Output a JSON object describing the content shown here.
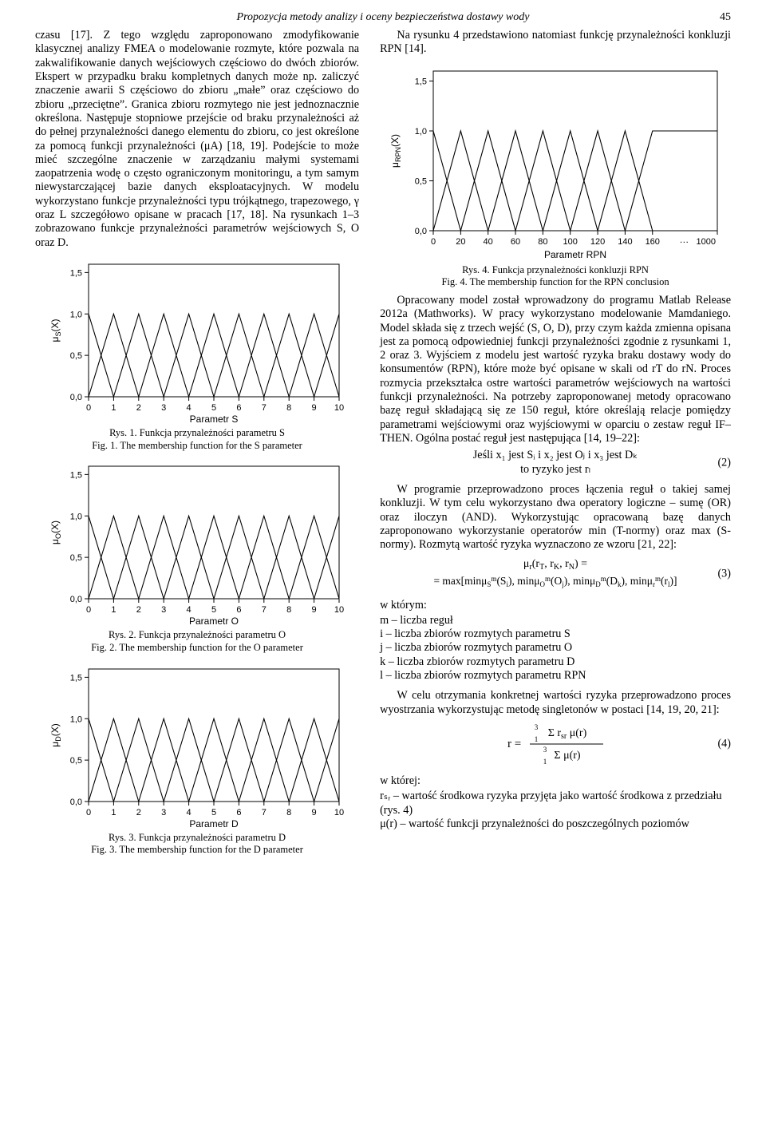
{
  "page": {
    "running_head": "Propozycja metody analizy i oceny bezpieczeństwa dostawy wody",
    "number": "45"
  },
  "left_text": {
    "p1": "czasu [17]. Z tego względu zaproponowano zmodyfikowanie klasycznej analizy FMEA o modelowanie rozmyte, które pozwala na zakwalifikowanie danych wejściowych częściowo do dwóch zbiorów. Ekspert w przypadku braku kompletnych danych może np. zaliczyć znaczenie awarii S częściowo do zbioru „małe” oraz częściowo do zbioru „przeciętne”. Granica zbioru rozmytego nie jest jednoznacznie określona. Następuje stopniowe przejście od braku przynależności aż do pełnej przynależności danego elementu do zbioru, co jest określone za pomocą funkcji przynależności (μA) [18, 19]. Podejście to może mieć szczególne znaczenie w zarządzaniu małymi systemami zaopatrzenia wodę o często ograniczonym monitoringu, a tym samym niewystarczającej bazie danych eksploatacyjnych. W modelu wykorzystano funkcje przynależności typu trójkątnego, trapezowego, γ oraz L szczegółowo opisane w pracach [17, 18]. Na rysunkach 1–3 zobrazowano funkcje przynależności parametrów wejściowych S, O oraz D."
  },
  "right_text": {
    "p1": "Na rysunku 4 przedstawiono natomiast funkcję przynależności konkluzji RPN [14].",
    "p2": "Opracowany model został wprowadzony do programu Matlab Release 2012a (Mathworks). W pracy wykorzystano modelowanie Mamdaniego. Model składa się z trzech wejść (S, O, D), przy czym każda zmienna opisana jest za pomocą odpowiedniej funkcji przynależności zgodnie z rysunkami 1, 2 oraz 3. Wyjściem z modelu jest wartość ryzyka braku dostawy wody do konsumentów (RPN), które może być opisane w skali od rT do rN. Proces rozmycia przekształca ostre wartości parametrów wejściowych na wartości funkcji przynależności. Na potrzeby zaproponowanej metody opracowano bazę reguł składającą się ze 150 reguł, które określają relacje pomiędzy parametrami wejściowymi oraz wyjściowymi w oparciu o zestaw reguł IF–THEN. Ogólna postać reguł jest następująca [14, 19–22]:",
    "eq2_line1": "Jeśli x₁ jest Sᵢ i x₂ jest Oⱼ i x₃ jest Dₖ",
    "eq2_line2": "to ryzyko jest rₗ",
    "eq2_num": "(2)",
    "p3": "W programie przeprowadzono proces łączenia reguł o takiej samej konkluzji. W tym celu wykorzystano dwa operatory logiczne – sumę (OR) oraz iloczyn (AND). Wykorzystując opracowaną bazę danych zaproponowano wykorzystanie operatorów min (T-normy) oraz max (S-normy). Rozmytą wartość ryzyka wyznaczono ze wzoru [21, 22]:",
    "eq3_num": "(3)",
    "where_label": "w którym:",
    "where_items": [
      "m – liczba reguł",
      "i – liczba zbiorów rozmytych parametru S",
      "j – liczba zbiorów rozmytych parametru O",
      "k – liczba zbiorów rozmytych parametru D",
      "l – liczba zbiorów rozmytych parametru RPN"
    ],
    "p4": "W celu otrzymania konkretnej wartości ryzyka przeprowadzono proces wyostrzania wykorzystując metodę singletonów w postaci [14, 19, 20, 21]:",
    "eq4_num": "(4)",
    "where2_label": "w której:",
    "where2_items": [
      "rₛᵣ – wartość środkowa ryzyka przyjęta jako wartość środkowa z przedziału (rys. 4)",
      "μ(r) – wartość funkcji przynależności do poszczególnych poziomów"
    ]
  },
  "figs": {
    "fig1": {
      "cap_pl": "Rys. 1. Funkcja przynależności parametru S",
      "cap_en": "Fig. 1. The membership function for the S parameter",
      "xlabel": "Parametr S",
      "ylabel": "μS(X)",
      "params": {
        "type": "membership-triangles",
        "xlim": [
          0,
          10
        ],
        "ylim": [
          0.0,
          1.6
        ],
        "xticks": [
          0,
          1,
          2,
          3,
          4,
          5,
          6,
          7,
          8,
          9,
          10
        ],
        "yticks": [
          0.0,
          0.5,
          1.0,
          1.5
        ],
        "yticklabels": [
          "0,0",
          "0,5",
          "1,0",
          "1,5"
        ],
        "firstHalfWidth": 0.5,
        "lastHalfWidth": 0.5,
        "axis_stroke": "#000000",
        "line_stroke": "#000000",
        "grid_color": "#000000",
        "line_width": 1.1,
        "label_font_size": 12,
        "tick_font_size": 11,
        "background": "#ffffff"
      }
    },
    "fig2": {
      "cap_pl": "Rys. 2. Funkcja przynależności parametru O",
      "cap_en": "Fig. 2. The membership function for the O parameter",
      "xlabel": "Parametr O",
      "ylabel": "μO(X)",
      "params": {
        "copyOf": "fig1"
      }
    },
    "fig3": {
      "cap_pl": "Rys. 3. Funkcja przynależności parametru D",
      "cap_en": "Fig. 3. The membership function for the D parameter",
      "xlabel": "Parametr D",
      "ylabel": "μD(X)",
      "params": {
        "copyOf": "fig1"
      }
    },
    "fig4": {
      "cap_pl": "Rys. 4. Funkcja przynależności konkluzji RPN",
      "cap_en": "Fig. 4. The membership function for the RPN conclusion",
      "xlabel": "Parametr RPN",
      "ylabel": "μRPN(X)",
      "params": {
        "type": "membership-triangles",
        "xlim": [
          0,
          1000
        ],
        "visibleLimit": 170,
        "ylim": [
          0.0,
          1.6
        ],
        "xticks_visible": [
          0,
          20,
          40,
          60,
          80,
          100,
          120,
          140,
          160
        ],
        "xtick_last": 1000,
        "yticks": [
          0.0,
          0.5,
          1.0,
          1.5
        ],
        "yticklabels": [
          "0,0",
          "0,5",
          "1,0",
          "1,5"
        ],
        "peaks": [
          0,
          20,
          40,
          60,
          80,
          100,
          120,
          140,
          160
        ],
        "endHalfWidth": 10,
        "axis_stroke": "#000000",
        "line_stroke": "#000000",
        "line_width": 1.1,
        "label_font_size": 12,
        "tick_font_size": 11,
        "background": "#ffffff"
      }
    }
  },
  "formulas": {
    "eq3_parts": {
      "top": "μᵣ(rT, rK, rN) =",
      "bottom": "= max[minμSᵐ(Sᵢ), minμOᵐ(Oⱼ), minμDᵐ(Dₖ), minμᵣᵐ(rₗ)]"
    }
  }
}
